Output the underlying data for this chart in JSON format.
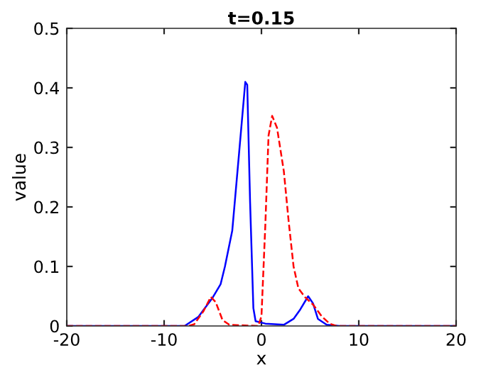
{
  "chart_data": {
    "type": "line",
    "title": "t=0.15",
    "xlabel": "x",
    "ylabel": "value",
    "xlim": [
      -20,
      20
    ],
    "ylim": [
      0,
      0.5
    ],
    "xticks": [
      -20,
      -10,
      0,
      10,
      20
    ],
    "yticks": [
      0,
      0.1,
      0.2,
      0.3,
      0.4,
      0.5
    ],
    "grid": false,
    "legend": false,
    "series": [
      {
        "color": "#0000ff",
        "line_style": "solid",
        "x": [
          -20,
          -10,
          -7.9,
          -6.5,
          -5.0,
          -4.2,
          -3.75,
          -3.0,
          -2.3,
          -1.66,
          -1.46,
          -1.17,
          -0.83,
          -0.6,
          0.4,
          2.3,
          3.3,
          4.0,
          4.8,
          5.3,
          5.8,
          6.7,
          8,
          20
        ],
        "values": [
          0,
          0,
          0,
          0.015,
          0.048,
          0.07,
          0.1,
          0.16,
          0.29,
          0.41,
          0.405,
          0.21,
          0.03,
          0.008,
          0.004,
          0.002,
          0.012,
          0.028,
          0.05,
          0.038,
          0.012,
          0.002,
          0,
          0
        ]
      },
      {
        "color": "#ff0000",
        "line_style": "dashed",
        "x": [
          -20,
          -10,
          -7.5,
          -6.9,
          -5.95,
          -5.2,
          -4.7,
          -4.0,
          -3.3,
          -0.34,
          0,
          0.4,
          0.73,
          1.1,
          1.6,
          2.3,
          2.8,
          3.3,
          3.8,
          4.5,
          5.3,
          6.2,
          7.0,
          7.7,
          20
        ],
        "values": [
          0,
          0,
          0,
          0.003,
          0.025,
          0.049,
          0.04,
          0.01,
          0.002,
          0,
          0.016,
          0.17,
          0.32,
          0.353,
          0.333,
          0.26,
          0.175,
          0.1,
          0.063,
          0.048,
          0.036,
          0.016,
          0.004,
          0,
          0
        ]
      }
    ]
  }
}
